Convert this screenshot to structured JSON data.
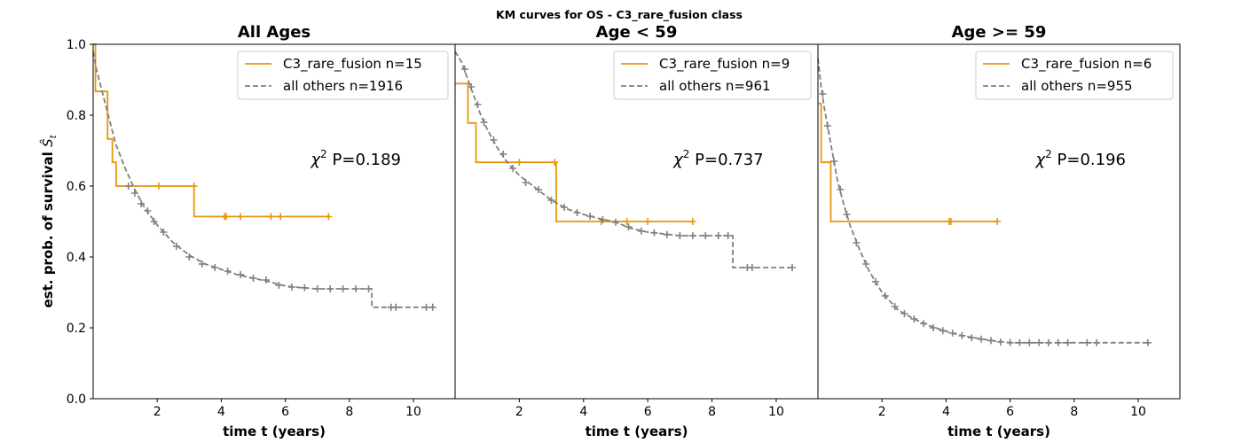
{
  "figure": {
    "suptitle": "KM curves for OS - C3_rare_fusion class",
    "ylabel": "est. prob. of survival",
    "ylabel_math": "Ŝ",
    "ylabel_math_sub": "t"
  },
  "chart_data": [
    {
      "type": "line",
      "title": "All Ages",
      "xlabel": "time t (years)",
      "xlim": [
        0,
        11.3
      ],
      "ylim": [
        0.0,
        1.0
      ],
      "xticks": [
        2,
        4,
        6,
        8,
        10
      ],
      "yticks": [
        0.0,
        0.2,
        0.4,
        0.6,
        0.8,
        1.0
      ],
      "legend_position": "upper-right",
      "annotation": {
        "prefix": "χ",
        "sup": "2",
        "text": " P=0.189",
        "x": 6.8,
        "y": 0.66
      },
      "series": [
        {
          "name": "C3_rare_fusion n=15",
          "color": "#e8960c",
          "style": "solid",
          "steps": [
            [
              0,
              1.0
            ],
            [
              0.07,
              0.867
            ],
            [
              0.45,
              0.733
            ],
            [
              0.6,
              0.667
            ],
            [
              0.72,
              0.6
            ],
            [
              3.15,
              0.514
            ],
            [
              7.35,
              0.514
            ]
          ],
          "censors": [
            [
              2.05,
              0.6
            ],
            [
              3.15,
              0.6
            ],
            [
              4.1,
              0.514
            ],
            [
              4.15,
              0.514
            ],
            [
              4.6,
              0.514
            ],
            [
              5.55,
              0.514
            ],
            [
              5.85,
              0.514
            ],
            [
              7.35,
              0.514
            ]
          ]
        },
        {
          "name": "all others n=1916",
          "color": "#808080",
          "style": "dashed",
          "curve": [
            [
              0,
              0.98
            ],
            [
              0.1,
              0.93
            ],
            [
              0.3,
              0.86
            ],
            [
              0.5,
              0.79
            ],
            [
              0.7,
              0.72
            ],
            [
              1.0,
              0.65
            ],
            [
              1.3,
              0.59
            ],
            [
              1.6,
              0.54
            ],
            [
              2.0,
              0.49
            ],
            [
              2.5,
              0.44
            ],
            [
              3.0,
              0.405
            ],
            [
              3.5,
              0.38
            ],
            [
              4.0,
              0.365
            ],
            [
              4.5,
              0.35
            ],
            [
              5.0,
              0.34
            ],
            [
              5.5,
              0.33
            ],
            [
              6.0,
              0.318
            ],
            [
              6.5,
              0.313
            ],
            [
              7.0,
              0.31
            ],
            [
              8.7,
              0.31
            ],
            [
              8.7,
              0.258
            ],
            [
              10.6,
              0.258
            ]
          ],
          "censors": [
            [
              1.1,
              0.6
            ],
            [
              1.3,
              0.58
            ],
            [
              1.5,
              0.55
            ],
            [
              1.7,
              0.53
            ],
            [
              1.9,
              0.5
            ],
            [
              2.2,
              0.47
            ],
            [
              2.6,
              0.43
            ],
            [
              3.0,
              0.4
            ],
            [
              3.4,
              0.38
            ],
            [
              3.8,
              0.37
            ],
            [
              4.2,
              0.36
            ],
            [
              4.6,
              0.35
            ],
            [
              5.0,
              0.34
            ],
            [
              5.4,
              0.335
            ],
            [
              5.8,
              0.32
            ],
            [
              6.2,
              0.315
            ],
            [
              6.6,
              0.313
            ],
            [
              7.0,
              0.31
            ],
            [
              7.4,
              0.31
            ],
            [
              7.8,
              0.31
            ],
            [
              8.2,
              0.31
            ],
            [
              8.6,
              0.31
            ],
            [
              9.3,
              0.258
            ],
            [
              9.45,
              0.258
            ],
            [
              10.4,
              0.258
            ],
            [
              10.6,
              0.258
            ]
          ]
        }
      ]
    },
    {
      "type": "line",
      "title": "Age < 59",
      "xlabel": "time t (years)",
      "xlim": [
        0,
        11.3
      ],
      "ylim": [
        0.0,
        1.0
      ],
      "xticks": [
        2,
        4,
        6,
        8,
        10
      ],
      "yticks": [],
      "legend_position": "upper-right",
      "annotation": {
        "prefix": "χ",
        "sup": "2",
        "text": " P=0.737",
        "x": 6.8,
        "y": 0.66
      },
      "series": [
        {
          "name": "C3_rare_fusion n=9",
          "color": "#e8960c",
          "style": "solid",
          "steps": [
            [
              0,
              0.889
            ],
            [
              0.4,
              0.778
            ],
            [
              0.65,
              0.667
            ],
            [
              3.15,
              0.5
            ],
            [
              7.4,
              0.5
            ]
          ],
          "censors": [
            [
              2.0,
              0.667
            ],
            [
              3.1,
              0.667
            ],
            [
              4.55,
              0.5
            ],
            [
              5.35,
              0.5
            ],
            [
              6.0,
              0.5
            ],
            [
              7.4,
              0.5
            ]
          ]
        },
        {
          "name": "all others n=961",
          "color": "#808080",
          "style": "dashed",
          "curve": [
            [
              0,
              0.98
            ],
            [
              0.2,
              0.95
            ],
            [
              0.4,
              0.9
            ],
            [
              0.6,
              0.85
            ],
            [
              0.8,
              0.8
            ],
            [
              1.0,
              0.76
            ],
            [
              1.3,
              0.71
            ],
            [
              1.6,
              0.67
            ],
            [
              2.0,
              0.63
            ],
            [
              2.5,
              0.595
            ],
            [
              3.0,
              0.56
            ],
            [
              3.5,
              0.535
            ],
            [
              4.0,
              0.52
            ],
            [
              4.5,
              0.508
            ],
            [
              5.0,
              0.498
            ],
            [
              5.5,
              0.48
            ],
            [
              6.0,
              0.47
            ],
            [
              6.5,
              0.465
            ],
            [
              7.0,
              0.46
            ],
            [
              8.65,
              0.46
            ],
            [
              8.65,
              0.37
            ],
            [
              10.6,
              0.37
            ]
          ],
          "censors": [
            [
              0.3,
              0.93
            ],
            [
              0.5,
              0.88
            ],
            [
              0.7,
              0.83
            ],
            [
              0.9,
              0.78
            ],
            [
              1.2,
              0.73
            ],
            [
              1.5,
              0.69
            ],
            [
              1.8,
              0.65
            ],
            [
              2.2,
              0.61
            ],
            [
              2.6,
              0.59
            ],
            [
              3.0,
              0.56
            ],
            [
              3.4,
              0.54
            ],
            [
              3.8,
              0.525
            ],
            [
              4.2,
              0.515
            ],
            [
              4.6,
              0.505
            ],
            [
              5.0,
              0.498
            ],
            [
              5.4,
              0.485
            ],
            [
              5.8,
              0.473
            ],
            [
              6.2,
              0.468
            ],
            [
              6.6,
              0.463
            ],
            [
              7.0,
              0.46
            ],
            [
              7.4,
              0.46
            ],
            [
              7.8,
              0.46
            ],
            [
              8.2,
              0.46
            ],
            [
              8.5,
              0.46
            ],
            [
              9.1,
              0.37
            ],
            [
              9.25,
              0.37
            ],
            [
              10.5,
              0.37
            ]
          ]
        }
      ]
    },
    {
      "type": "line",
      "title": "Age >= 59",
      "xlabel": "time t (years)",
      "xlim": [
        0,
        11.3
      ],
      "ylim": [
        0.0,
        1.0
      ],
      "xticks": [
        2,
        4,
        6,
        8,
        10
      ],
      "yticks": [],
      "legend_position": "upper-right",
      "annotation": {
        "prefix": "χ",
        "sup": "2",
        "text": " P=0.196",
        "x": 6.8,
        "y": 0.66
      },
      "series": [
        {
          "name": "C3_rare_fusion n=6",
          "color": "#e8960c",
          "style": "solid",
          "steps": [
            [
              0,
              0.833
            ],
            [
              0.1,
              0.667
            ],
            [
              0.4,
              0.5
            ],
            [
              5.6,
              0.5
            ]
          ],
          "censors": [
            [
              4.1,
              0.5
            ],
            [
              4.15,
              0.5
            ],
            [
              5.6,
              0.5
            ]
          ]
        },
        {
          "name": "all others n=955",
          "color": "#808080",
          "style": "dashed",
          "curve": [
            [
              0,
              0.96
            ],
            [
              0.1,
              0.88
            ],
            [
              0.2,
              0.82
            ],
            [
              0.4,
              0.72
            ],
            [
              0.6,
              0.62
            ],
            [
              0.8,
              0.55
            ],
            [
              1.0,
              0.49
            ],
            [
              1.3,
              0.42
            ],
            [
              1.6,
              0.36
            ],
            [
              2.0,
              0.3
            ],
            [
              2.5,
              0.25
            ],
            [
              3.0,
              0.225
            ],
            [
              3.5,
              0.205
            ],
            [
              4.0,
              0.19
            ],
            [
              4.5,
              0.178
            ],
            [
              5.0,
              0.17
            ],
            [
              5.5,
              0.163
            ],
            [
              6.0,
              0.158
            ],
            [
              10.3,
              0.158
            ]
          ],
          "censors": [
            [
              0.15,
              0.86
            ],
            [
              0.3,
              0.77
            ],
            [
              0.5,
              0.67
            ],
            [
              0.7,
              0.59
            ],
            [
              0.9,
              0.52
            ],
            [
              1.2,
              0.44
            ],
            [
              1.5,
              0.38
            ],
            [
              1.8,
              0.33
            ],
            [
              2.1,
              0.29
            ],
            [
              2.4,
              0.26
            ],
            [
              2.7,
              0.24
            ],
            [
              3.0,
              0.225
            ],
            [
              3.3,
              0.212
            ],
            [
              3.6,
              0.2
            ],
            [
              3.9,
              0.192
            ],
            [
              4.2,
              0.185
            ],
            [
              4.5,
              0.178
            ],
            [
              4.8,
              0.172
            ],
            [
              5.1,
              0.168
            ],
            [
              5.4,
              0.164
            ],
            [
              5.7,
              0.16
            ],
            [
              6.0,
              0.158
            ],
            [
              6.3,
              0.158
            ],
            [
              6.6,
              0.158
            ],
            [
              6.9,
              0.158
            ],
            [
              7.2,
              0.158
            ],
            [
              7.5,
              0.158
            ],
            [
              7.8,
              0.158
            ],
            [
              8.4,
              0.158
            ],
            [
              8.7,
              0.158
            ],
            [
              10.3,
              0.158
            ]
          ]
        }
      ]
    }
  ]
}
